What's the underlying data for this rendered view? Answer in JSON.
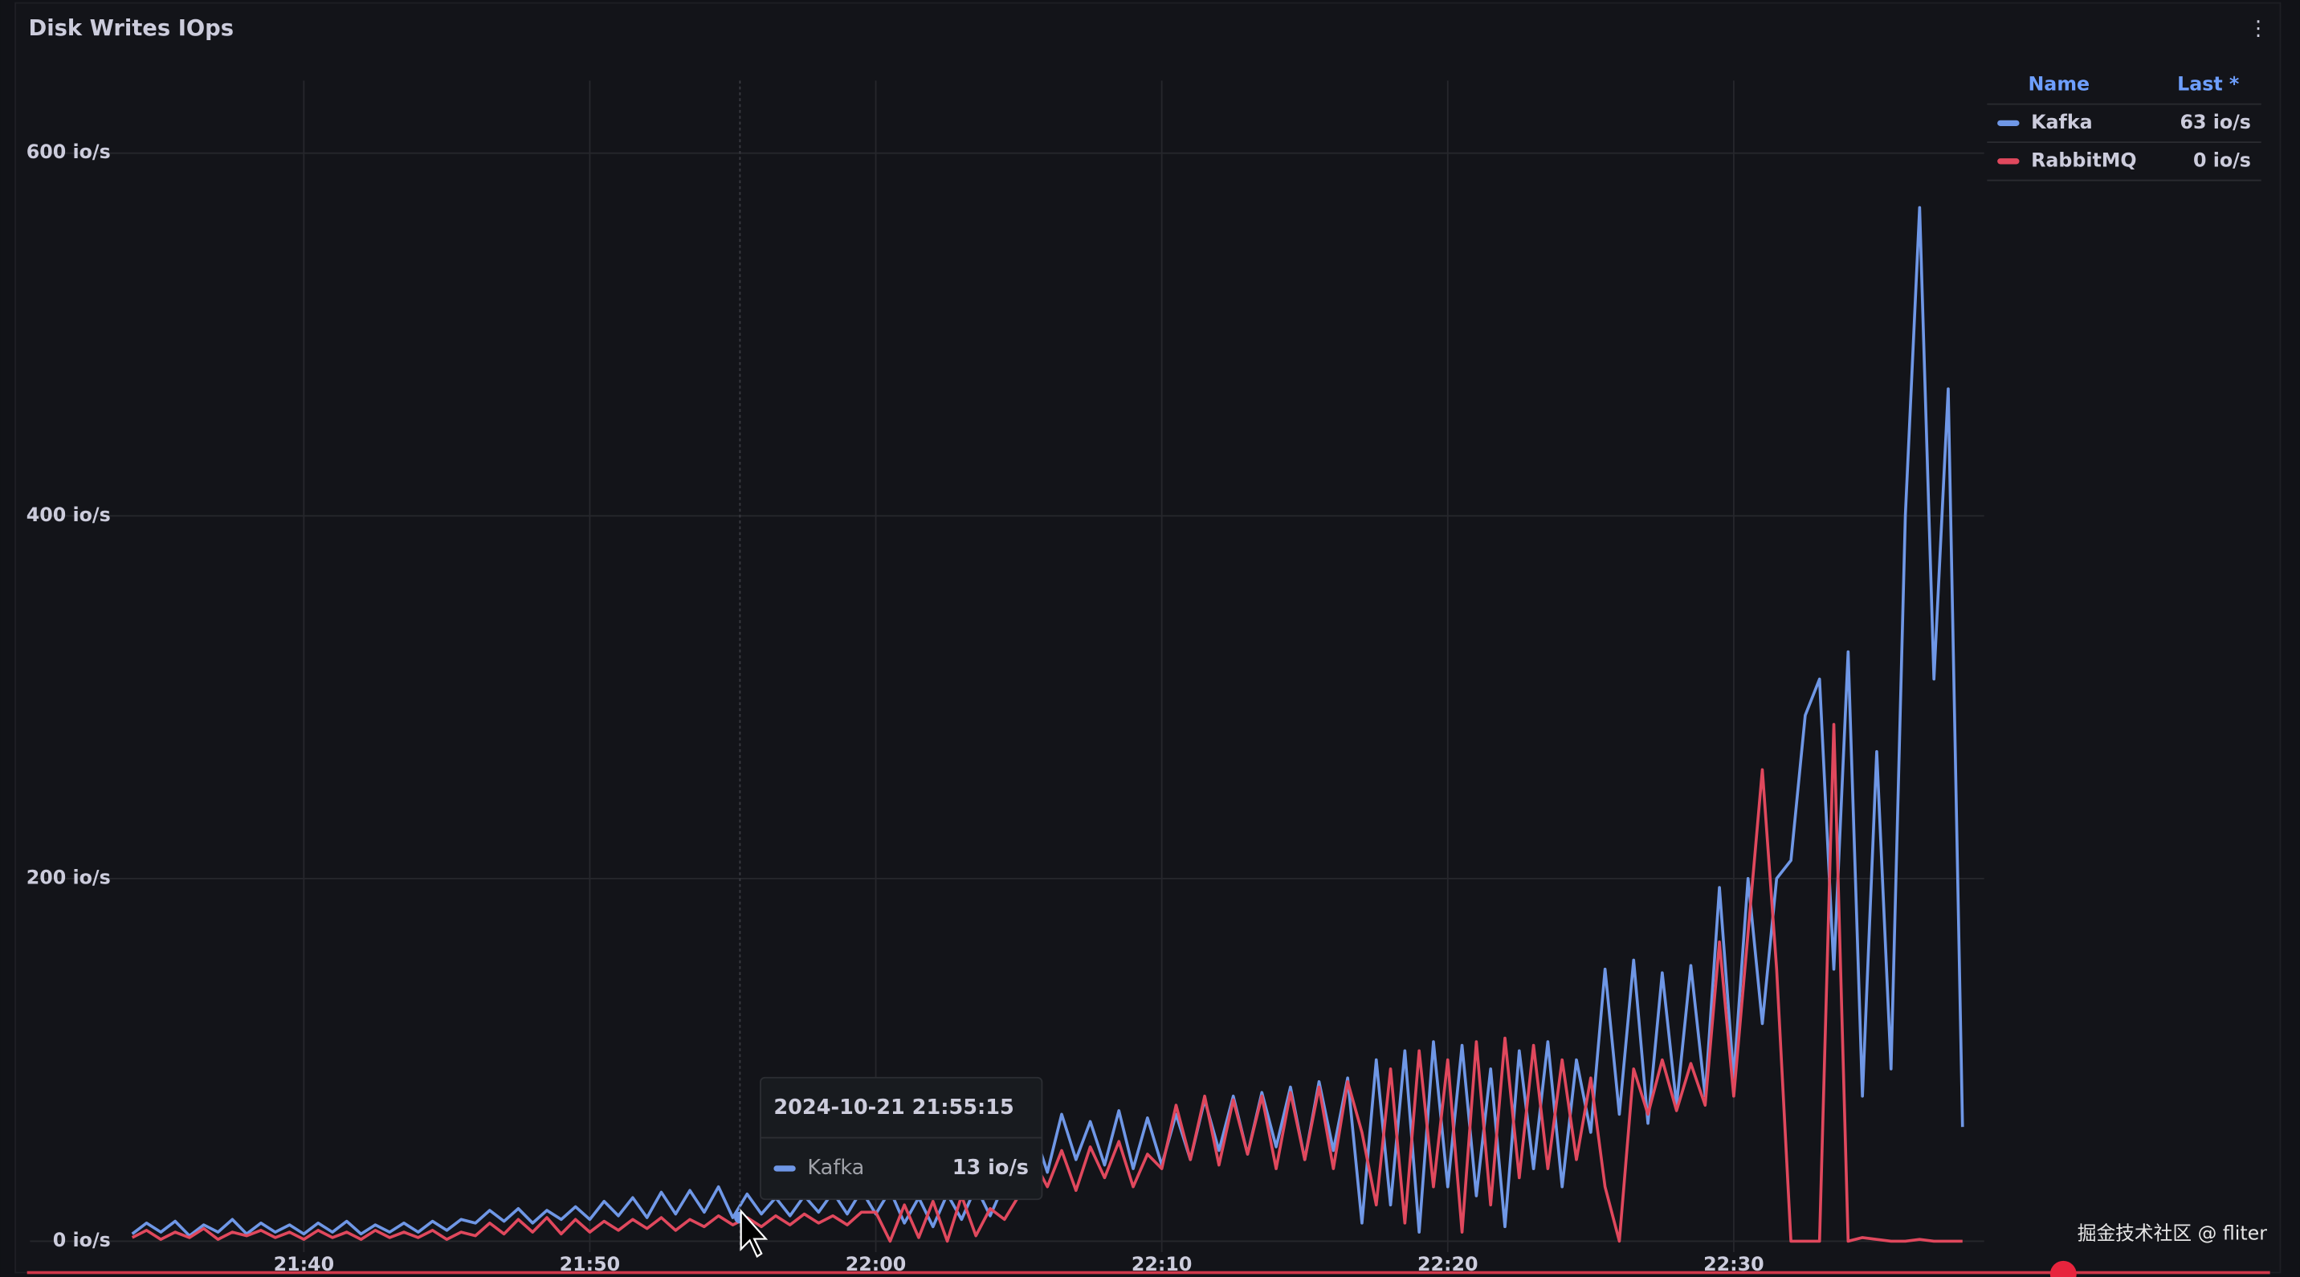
{
  "chart_data": {
    "type": "line",
    "title": "Disk Writes IOps",
    "x": [
      "21:34:00",
      "21:34:30",
      "21:35:00",
      "21:35:30",
      "21:36:00",
      "21:36:30",
      "21:37:00",
      "21:37:30",
      "21:38:00",
      "21:38:30",
      "21:39:00",
      "21:39:30",
      "21:40:00",
      "21:40:30",
      "21:41:00",
      "21:41:30",
      "21:42:00",
      "21:42:30",
      "21:43:00",
      "21:43:30",
      "21:44:00",
      "21:44:30",
      "21:45:00",
      "21:45:30",
      "21:46:00",
      "21:46:30",
      "21:47:00",
      "21:47:30",
      "21:48:00",
      "21:48:30",
      "21:49:00",
      "21:49:30",
      "21:50:00",
      "21:50:30",
      "21:51:00",
      "21:51:30",
      "21:52:00",
      "21:52:30",
      "21:53:00",
      "21:53:30",
      "21:54:00",
      "21:54:30",
      "21:55:00",
      "21:55:30",
      "21:56:00",
      "21:56:30",
      "21:57:00",
      "21:57:30",
      "21:58:00",
      "21:58:30",
      "21:59:00",
      "21:59:30",
      "22:00:00",
      "22:00:30",
      "22:01:00",
      "22:01:30",
      "22:02:00",
      "22:02:30",
      "22:03:00",
      "22:03:30",
      "22:04:00",
      "22:04:30",
      "22:05:00",
      "22:05:30",
      "22:06:00",
      "22:06:30",
      "22:07:00",
      "22:07:30",
      "22:08:00",
      "22:08:30",
      "22:09:00",
      "22:09:30",
      "22:10:00",
      "22:10:30",
      "22:11:00",
      "22:11:30",
      "22:12:00",
      "22:12:30",
      "22:13:00",
      "22:13:30",
      "22:14:00",
      "22:14:30",
      "22:15:00",
      "22:15:30",
      "22:16:00",
      "22:16:30",
      "22:17:00",
      "22:17:30",
      "22:18:00",
      "22:18:30",
      "22:19:00",
      "22:19:30",
      "22:20:00",
      "22:20:30",
      "22:21:00",
      "22:21:30",
      "22:22:00",
      "22:22:30",
      "22:23:00",
      "22:23:30",
      "22:24:00",
      "22:24:30",
      "22:25:00",
      "22:25:30",
      "22:26:00",
      "22:26:30",
      "22:27:00",
      "22:27:30",
      "22:28:00",
      "22:28:30",
      "22:29:00",
      "22:29:30",
      "22:30:00",
      "22:30:30",
      "22:31:00",
      "22:31:30",
      "22:32:00",
      "22:32:30",
      "22:33:00",
      "22:33:30",
      "22:34:00",
      "22:34:30",
      "22:35:00",
      "22:35:30",
      "22:36:00",
      "22:36:30",
      "22:37:00",
      "22:37:30",
      "22:38:00"
    ],
    "series": [
      {
        "name": "Kafka",
        "color": "#6f97e6",
        "last_label": "63 io/s",
        "values": [
          4,
          10,
          5,
          11,
          3,
          9,
          5,
          12,
          4,
          10,
          5,
          9,
          4,
          10,
          5,
          11,
          4,
          9,
          5,
          10,
          5,
          11,
          6,
          12,
          10,
          17,
          11,
          18,
          10,
          17,
          12,
          19,
          12,
          22,
          14,
          24,
          13,
          27,
          15,
          28,
          16,
          30,
          13,
          26,
          15,
          24,
          14,
          25,
          16,
          27,
          15,
          28,
          15,
          28,
          10,
          24,
          8,
          26,
          12,
          30,
          14,
          32,
          40,
          62,
          38,
          70,
          45,
          66,
          42,
          72,
          40,
          68,
          42,
          70,
          45,
          78,
          50,
          80,
          48,
          82,
          52,
          85,
          45,
          88,
          50,
          90,
          10,
          100,
          20,
          105,
          5,
          110,
          30,
          108,
          25,
          95,
          8,
          105,
          40,
          110,
          30,
          100,
          60,
          150,
          70,
          155,
          65,
          148,
          75,
          152,
          80,
          195,
          90,
          200,
          120,
          200,
          210,
          290,
          310,
          150,
          325,
          80,
          270,
          95,
          400,
          570,
          310,
          470,
          63
        ]
      },
      {
        "name": "RabbitMQ",
        "color": "#e0485d",
        "last_label": "0 io/s",
        "values": [
          2,
          6,
          1,
          5,
          2,
          7,
          1,
          5,
          3,
          6,
          2,
          5,
          1,
          6,
          2,
          5,
          1,
          6,
          2,
          5,
          2,
          6,
          1,
          5,
          3,
          10,
          4,
          12,
          5,
          13,
          4,
          12,
          5,
          11,
          6,
          12,
          7,
          13,
          6,
          12,
          8,
          14,
          9,
          13,
          8,
          14,
          9,
          15,
          10,
          14,
          9,
          16,
          16,
          0,
          20,
          2,
          22,
          0,
          25,
          3,
          18,
          12,
          25,
          45,
          30,
          50,
          28,
          52,
          35,
          55,
          30,
          48,
          40,
          75,
          45,
          80,
          42,
          78,
          48,
          80,
          40,
          82,
          45,
          85,
          40,
          88,
          60,
          20,
          95,
          10,
          105,
          30,
          100,
          5,
          110,
          20,
          112,
          35,
          108,
          40,
          100,
          45,
          90,
          30,
          0,
          95,
          70,
          100,
          72,
          98,
          75,
          165,
          80,
          170,
          260,
          150,
          0,
          0,
          0,
          285,
          0,
          2,
          1,
          0,
          0,
          1,
          0,
          0,
          0
        ]
      }
    ],
    "xlim": [
      "21:33:30",
      "22:38:30"
    ],
    "xticks": [
      "21:40",
      "21:50",
      "22:00",
      "22:10",
      "22:20",
      "22:30"
    ],
    "ylim": [
      -6,
      640
    ],
    "yticks": [
      {
        "value": 0,
        "label": "0 io/s"
      },
      {
        "value": 200,
        "label": "200 io/s"
      },
      {
        "value": 400,
        "label": "400 io/s"
      },
      {
        "value": 600,
        "label": "600 io/s"
      }
    ],
    "grid": true,
    "legend": {
      "position": "top-right",
      "columns": [
        "Name",
        "Last *"
      ]
    },
    "tooltip": {
      "time": "2024-10-21 21:55:15",
      "series": "Kafka",
      "value": 13,
      "value_label": "13 io/s"
    },
    "watermark": "掘金技术社区 @ fliter"
  }
}
